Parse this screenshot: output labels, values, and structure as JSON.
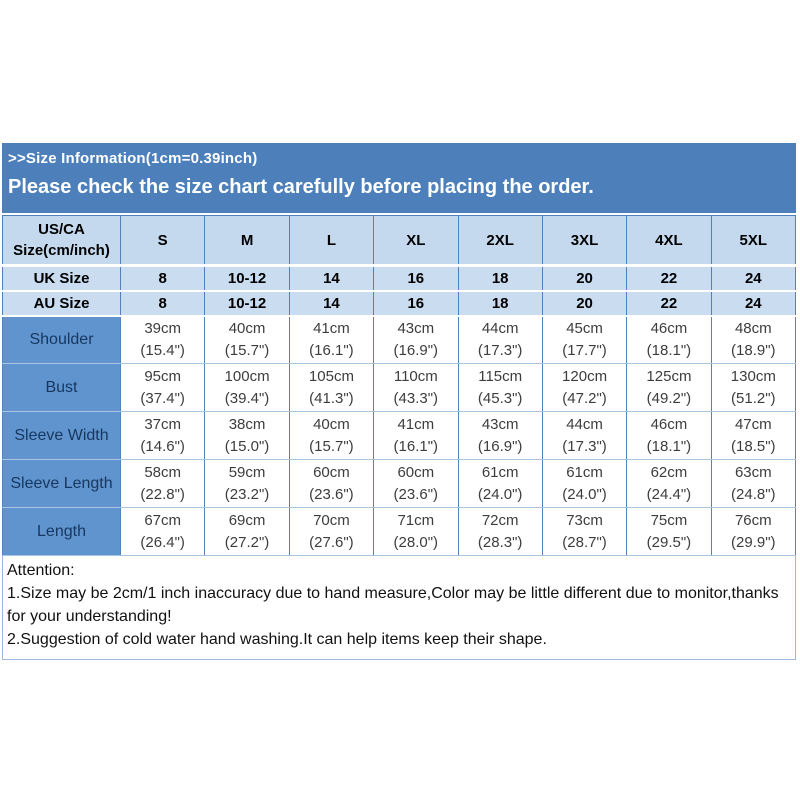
{
  "banner": {
    "line1": ">>Size Information(1cm=0.39inch)",
    "line2": "Please check the size chart carefully before placing the order."
  },
  "size_chart": {
    "corner": {
      "line1": "US/CA",
      "line2": "Size(cm/inch)"
    },
    "columns": [
      "S",
      "M",
      "L",
      "XL",
      "2XL",
      "3XL",
      "4XL",
      "5XL"
    ],
    "conversion_rows": [
      {
        "label": "UK Size",
        "values": [
          "8",
          "10-12",
          "14",
          "16",
          "18",
          "20",
          "22",
          "24"
        ]
      },
      {
        "label": "AU Size",
        "values": [
          "8",
          "10-12",
          "14",
          "16",
          "18",
          "20",
          "22",
          "24"
        ]
      }
    ],
    "measurement_rows": [
      {
        "label": "Shoulder",
        "cm": [
          "39cm",
          "40cm",
          "41cm",
          "43cm",
          "44cm",
          "45cm",
          "46cm",
          "48cm"
        ],
        "inch": [
          "(15.4\")",
          "(15.7\")",
          "(16.1\")",
          "(16.9\")",
          "(17.3\")",
          "(17.7\")",
          "(18.1\")",
          "(18.9\")"
        ]
      },
      {
        "label": "Bust",
        "cm": [
          "95cm",
          "100cm",
          "105cm",
          "110cm",
          "115cm",
          "120cm",
          "125cm",
          "130cm"
        ],
        "inch": [
          "(37.4\")",
          "(39.4\")",
          "(41.3\")",
          "(43.3\")",
          "(45.3\")",
          "(47.2\")",
          "(49.2\")",
          "(51.2\")"
        ]
      },
      {
        "label": "Sleeve Width",
        "cm": [
          "37cm",
          "38cm",
          "40cm",
          "41cm",
          "43cm",
          "44cm",
          "46cm",
          "47cm"
        ],
        "inch": [
          "(14.6\")",
          "(15.0\")",
          "(15.7\")",
          "(16.1\")",
          "(16.9\")",
          "(17.3\")",
          "(18.1\")",
          "(18.5\")"
        ]
      },
      {
        "label": "Sleeve Length",
        "cm": [
          "58cm",
          "59cm",
          "60cm",
          "60cm",
          "61cm",
          "61cm",
          "62cm",
          "63cm"
        ],
        "inch": [
          "(22.8\")",
          "(23.2\")",
          "(23.6\")",
          "(23.6\")",
          "(24.0\")",
          "(24.0\")",
          "(24.4\")",
          "(24.8\")"
        ]
      },
      {
        "label": "Length",
        "cm": [
          "67cm",
          "69cm",
          "70cm",
          "71cm",
          "72cm",
          "73cm",
          "75cm",
          "76cm"
        ],
        "inch": [
          "(26.4\")",
          "(27.2\")",
          "(27.6\")",
          "(28.0\")",
          "(28.3\")",
          "(28.7\")",
          "(29.5\")",
          "(29.9\")"
        ]
      }
    ]
  },
  "attention": {
    "title": "Attention:",
    "items": [
      "1.Size may be 2cm/1 inch inaccuracy due to hand measure,Color may be little different due to monitor,thanks for your understanding!",
      "2.Suggestion of cold water hand washing.It can help items keep their shape."
    ]
  },
  "colors": {
    "banner_bg": "#4d80bb",
    "header_cell_bg": "#c9dcf0",
    "label_cell_bg": "#6094ce",
    "grid_line": "#4f81bd",
    "light_grid_line": "#a8c4e0",
    "label_text": "#17375e",
    "banner_text": "#ffffff"
  }
}
